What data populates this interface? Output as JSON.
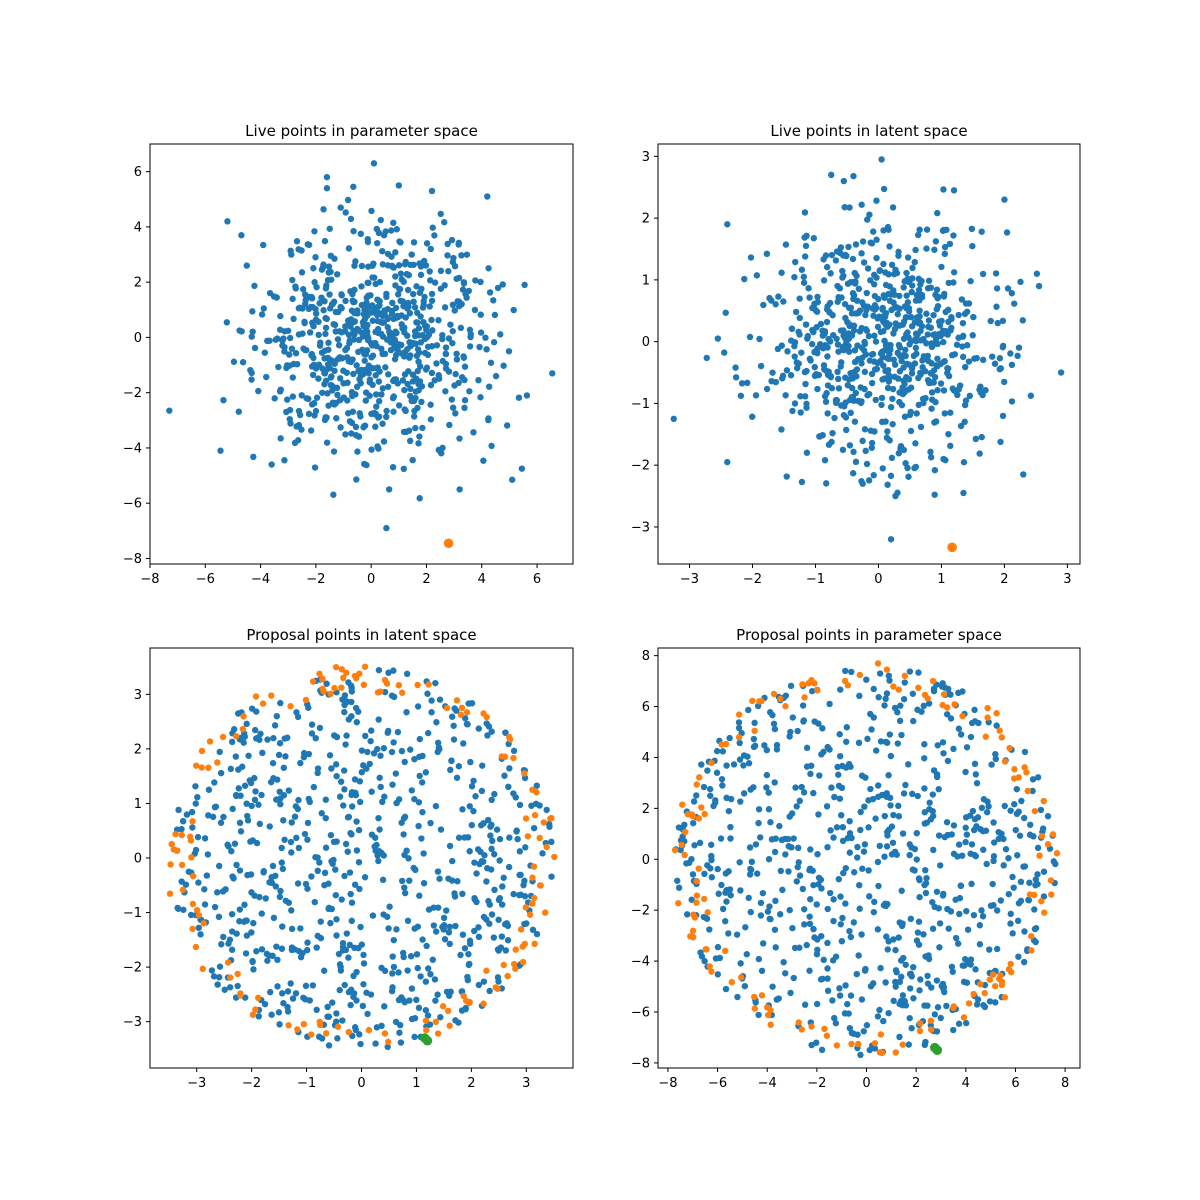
{
  "colors": {
    "live": "#1f77b4",
    "proposal_boundary": "#ff7f0e",
    "selected": "#2ca02c"
  },
  "chart_data": [
    {
      "id": "live-param",
      "type": "scatter",
      "title": "Live points in parameter space",
      "xlabel": "",
      "ylabel": "",
      "xlim": [
        -8.0,
        7.3
      ],
      "ylim": [
        -8.2,
        7.0
      ],
      "xticks": [
        -8,
        -6,
        -4,
        -2,
        0,
        2,
        4,
        6
      ],
      "yticks": [
        -8,
        -6,
        -4,
        -2,
        0,
        2,
        4,
        6
      ],
      "grid": false,
      "cloud": {
        "shape": "gaussian",
        "count": 750,
        "sigma": 2.1,
        "center": [
          0,
          0
        ],
        "seed": 11
      },
      "series": [
        {
          "role": "live",
          "points": [
            [
              -7.3,
              -2.65
            ],
            [
              6.55,
              -1.3
            ],
            [
              0.55,
              -6.9
            ],
            [
              0.1,
              6.3
            ],
            [
              -5.45,
              -4.1
            ],
            [
              -5.2,
              4.2
            ],
            [
              4.2,
              5.1
            ],
            [
              -1.6,
              5.8
            ],
            [
              5.45,
              -4.75
            ],
            [
              5.55,
              1.9
            ],
            [
              3.2,
              -5.5
            ],
            [
              1.0,
              5.5
            ],
            [
              -1.6,
              5.4
            ],
            [
              -4.5,
              2.6
            ],
            [
              5.1,
              -5.15
            ],
            [
              -3.6,
              -4.6
            ],
            [
              2.2,
              5.3
            ],
            [
              0.65,
              -5.5
            ]
          ]
        },
        {
          "role": "selected",
          "points": [
            [
              2.8,
              -7.45
            ]
          ]
        }
      ]
    },
    {
      "id": "live-latent",
      "type": "scatter",
      "title": "Live points in latent space",
      "xlabel": "",
      "ylabel": "",
      "xlim": [
        -3.5,
        3.2
      ],
      "ylim": [
        -3.6,
        3.2
      ],
      "xticks": [
        -3,
        -2,
        -1,
        0,
        1,
        2,
        3
      ],
      "yticks": [
        -3,
        -2,
        -1,
        0,
        1,
        2,
        3
      ],
      "grid": false,
      "cloud": {
        "shape": "gaussian",
        "count": 750,
        "sigma": 0.95,
        "center": [
          0,
          0
        ],
        "seed": 23
      },
      "series": [
        {
          "role": "live",
          "points": [
            [
              -3.25,
              -1.25
            ],
            [
              2.9,
              -0.5
            ],
            [
              0.2,
              -3.2
            ],
            [
              0.05,
              2.95
            ],
            [
              -2.4,
              -1.95
            ],
            [
              -2.4,
              1.9
            ],
            [
              2.0,
              2.3
            ],
            [
              -0.75,
              2.7
            ],
            [
              2.3,
              -2.15
            ],
            [
              2.55,
              0.9
            ],
            [
              1.35,
              -2.45
            ],
            [
              1.2,
              2.45
            ],
            [
              -0.55,
              2.6
            ],
            [
              0.27,
              -2.5
            ],
            [
              -0.25,
              -2.3
            ],
            [
              -2.55,
              0.05
            ]
          ]
        },
        {
          "role": "selected",
          "points": [
            [
              1.17,
              -3.33
            ]
          ]
        }
      ]
    },
    {
      "id": "proposal-latent",
      "type": "scatter",
      "title": "Proposal points in latent space",
      "xlabel": "",
      "ylabel": "",
      "xlim": [
        -3.85,
        3.85
      ],
      "ylim": [
        -3.85,
        3.85
      ],
      "xticks": [
        -3,
        -2,
        -1,
        0,
        1,
        2,
        3
      ],
      "yticks": [
        -3,
        -2,
        -1,
        0,
        1,
        2,
        3
      ],
      "grid": false,
      "cloud": {
        "shape": "uniform-disk",
        "count": 760,
        "radius": 3.5,
        "center": [
          0,
          0
        ],
        "seed": 37
      },
      "ring": {
        "count": 140,
        "r_min": 3.05,
        "r_max": 3.55,
        "seed": 41
      },
      "series": [
        {
          "role": "selected",
          "points": [
            [
              1.15,
              -3.3
            ],
            [
              1.2,
              -3.35
            ]
          ]
        }
      ]
    },
    {
      "id": "proposal-param",
      "type": "scatter",
      "title": "Proposal points in parameter space",
      "xlabel": "",
      "ylabel": "",
      "xlim": [
        -8.4,
        8.6
      ],
      "ylim": [
        -8.2,
        8.3
      ],
      "xticks": [
        -8,
        -6,
        -4,
        -2,
        0,
        2,
        4,
        6,
        8
      ],
      "yticks": [
        -8,
        -6,
        -4,
        -2,
        0,
        2,
        4,
        6,
        8
      ],
      "grid": false,
      "cloud": {
        "shape": "uniform-disk",
        "count": 760,
        "radius": 7.7,
        "center": [
          0,
          0
        ],
        "seed": 53
      },
      "ring": {
        "count": 140,
        "r_min": 6.7,
        "r_max": 7.8,
        "seed": 59
      },
      "series": [
        {
          "role": "selected",
          "points": [
            [
              2.75,
              -7.4
            ],
            [
              2.85,
              -7.5
            ]
          ]
        }
      ]
    }
  ]
}
